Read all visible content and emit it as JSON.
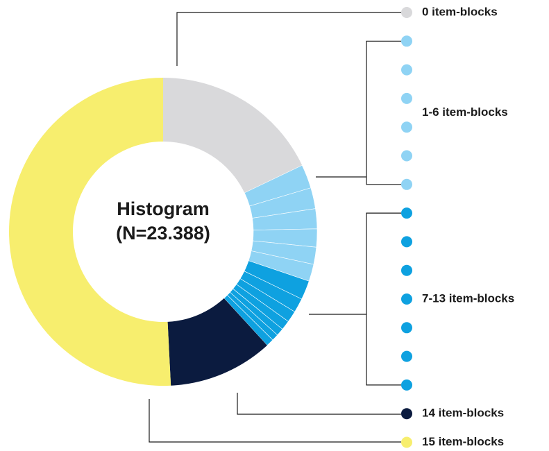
{
  "chart_data": {
    "type": "pie",
    "donut": true,
    "title_lines": [
      "Histogram",
      "(N=23.388)"
    ],
    "groups": [
      {
        "label": "0 item-blocks",
        "color": "#d9d9db",
        "values": [
          17.9
        ]
      },
      {
        "label": "1-6 item-blocks",
        "color": "#8fd3f4",
        "values": [
          2.5,
          2.2,
          2.1,
          1.9,
          1.8,
          1.8
        ]
      },
      {
        "label": "7-13 item-blocks",
        "color": "#0ea1e0",
        "values": [
          2.0,
          1.5,
          1.2,
          1.0,
          0.8,
          0.7,
          0.8
        ]
      },
      {
        "label": "14 item-blocks",
        "color": "#0b1b3f",
        "values": [
          11
        ]
      },
      {
        "label": "15 item-blocks",
        "color": "#f7ee6e",
        "values": [
          50.8
        ]
      }
    ]
  }
}
